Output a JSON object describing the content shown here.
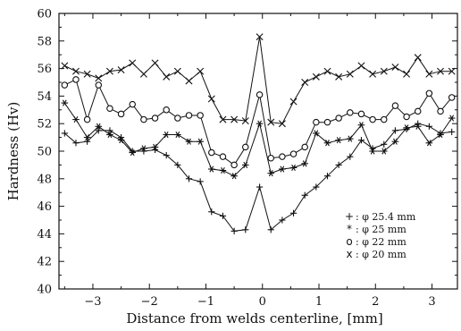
{
  "chart_data": {
    "type": "line",
    "xlabel": "Distance from welds  centerline,  [mm]",
    "ylabel": "Hardness (Hv)",
    "xlim": [
      -3.6,
      3.45
    ],
    "ylim": [
      40,
      60
    ],
    "xticks": [
      -3,
      -2,
      -1,
      0,
      1,
      2,
      3
    ],
    "xtick_labels": [
      "−3",
      "−2",
      "−1",
      "0",
      "1",
      "2",
      "3"
    ],
    "yticks": [
      40,
      42,
      44,
      46,
      48,
      50,
      52,
      54,
      56,
      58,
      60
    ],
    "yminor_step": 1,
    "xminor_step": 0.5,
    "legend_position": "lower-right",
    "series": [
      {
        "name": "φ 25.4 mm",
        "marker": "plus",
        "legend_symbol": "+",
        "x": [
          -3.5,
          -3.3,
          -3.1,
          -2.9,
          -2.7,
          -2.5,
          -2.3,
          -2.1,
          -1.9,
          -1.7,
          -1.5,
          -1.3,
          -1.1,
          -0.9,
          -0.7,
          -0.5,
          -0.3,
          -0.05,
          0.15,
          0.35,
          0.55,
          0.75,
          0.95,
          1.15,
          1.35,
          1.55,
          1.75,
          1.95,
          2.15,
          2.35,
          2.55,
          2.75,
          2.95,
          3.15,
          3.35
        ],
        "y": [
          51.3,
          50.6,
          50.7,
          51.5,
          51.5,
          51.0,
          50.0,
          50.0,
          50.1,
          49.7,
          49.0,
          48.0,
          47.8,
          45.6,
          45.3,
          44.2,
          44.3,
          47.4,
          44.3,
          45.0,
          45.5,
          46.8,
          47.4,
          48.2,
          49.0,
          49.6,
          50.8,
          50.2,
          50.5,
          51.5,
          51.6,
          52.0,
          51.8,
          51.3,
          51.4
        ]
      },
      {
        "name": "φ 25  mm",
        "marker": "star",
        "legend_symbol": "*",
        "x": [
          -3.5,
          -3.3,
          -3.1,
          -2.9,
          -2.7,
          -2.5,
          -2.3,
          -2.1,
          -1.9,
          -1.7,
          -1.5,
          -1.3,
          -1.1,
          -0.9,
          -0.7,
          -0.5,
          -0.3,
          -0.05,
          0.15,
          0.35,
          0.55,
          0.75,
          0.95,
          1.15,
          1.35,
          1.55,
          1.75,
          1.95,
          2.15,
          2.35,
          2.55,
          2.75,
          2.95,
          3.15,
          3.35
        ],
        "y": [
          53.5,
          52.3,
          51.0,
          51.8,
          51.2,
          50.8,
          49.9,
          50.2,
          50.3,
          51.2,
          51.2,
          50.7,
          50.7,
          48.7,
          48.6,
          48.2,
          49.0,
          52.0,
          48.4,
          48.7,
          48.8,
          49.1,
          51.3,
          50.6,
          50.8,
          50.9,
          51.9,
          50.0,
          50.0,
          50.7,
          51.7,
          51.8,
          50.6,
          51.2,
          52.4
        ]
      },
      {
        "name": "φ 22 mm",
        "marker": "circle",
        "legend_symbol": "o",
        "x": [
          -3.5,
          -3.3,
          -3.1,
          -2.9,
          -2.7,
          -2.5,
          -2.3,
          -2.1,
          -1.9,
          -1.7,
          -1.5,
          -1.3,
          -1.1,
          -0.9,
          -0.7,
          -0.5,
          -0.3,
          -0.05,
          0.15,
          0.35,
          0.55,
          0.75,
          0.95,
          1.15,
          1.35,
          1.55,
          1.75,
          1.95,
          2.15,
          2.35,
          2.55,
          2.75,
          2.95,
          3.15,
          3.35
        ],
        "y": [
          54.8,
          55.2,
          52.3,
          54.8,
          53.1,
          52.7,
          53.4,
          52.3,
          52.4,
          53.0,
          52.4,
          52.6,
          52.6,
          49.9,
          49.6,
          49.0,
          50.3,
          54.1,
          49.5,
          49.6,
          49.8,
          50.3,
          52.1,
          52.1,
          52.4,
          52.8,
          52.7,
          52.3,
          52.3,
          53.3,
          52.5,
          52.9,
          54.2,
          52.9,
          53.9
        ]
      },
      {
        "name": "φ 20 mm",
        "marker": "cross",
        "legend_symbol": "x",
        "x": [
          -3.5,
          -3.3,
          -3.1,
          -2.9,
          -2.7,
          -2.5,
          -2.3,
          -2.1,
          -1.9,
          -1.7,
          -1.5,
          -1.3,
          -1.1,
          -0.9,
          -0.7,
          -0.5,
          -0.3,
          -0.05,
          0.15,
          0.35,
          0.55,
          0.75,
          0.95,
          1.15,
          1.35,
          1.55,
          1.75,
          1.95,
          2.15,
          2.35,
          2.55,
          2.75,
          2.95,
          3.15,
          3.35
        ],
        "y": [
          56.2,
          55.8,
          55.6,
          55.3,
          55.8,
          55.9,
          56.4,
          55.6,
          56.4,
          55.4,
          55.8,
          55.1,
          55.8,
          53.8,
          52.3,
          52.3,
          52.2,
          58.3,
          52.1,
          52.0,
          53.6,
          55.0,
          55.4,
          55.8,
          55.4,
          55.6,
          56.2,
          55.6,
          55.8,
          56.1,
          55.6,
          56.8,
          55.6,
          55.8,
          55.8
        ]
      }
    ]
  }
}
